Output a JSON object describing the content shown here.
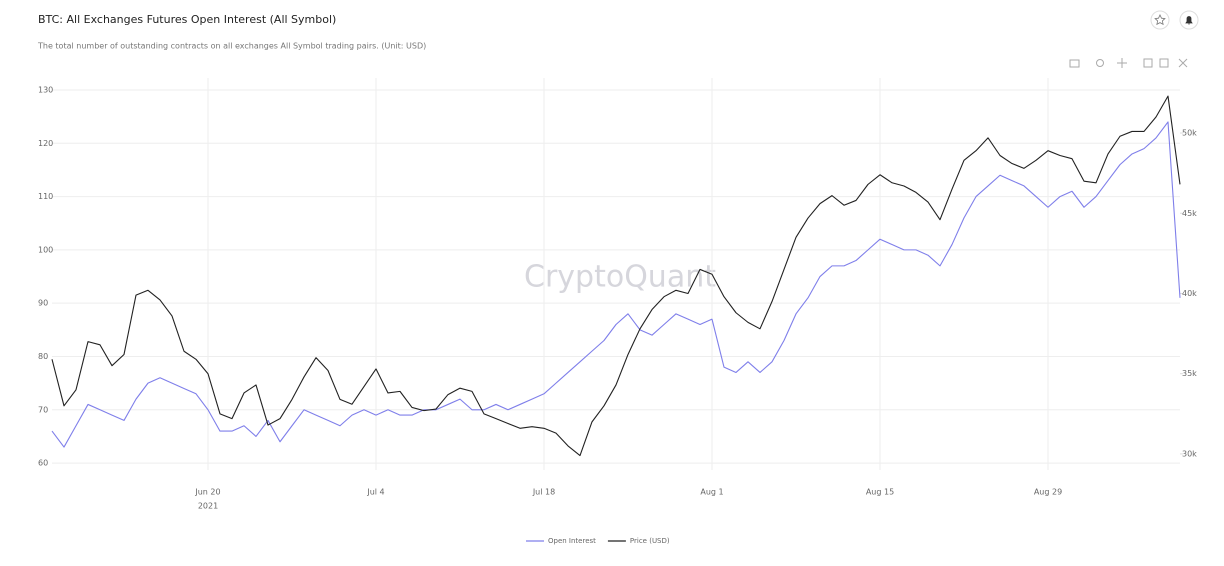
{
  "chart_data": {
    "type": "line",
    "title": "BTC: All Exchanges Futures Open Interest (All Symbol)",
    "subtitle": "The total number of outstanding contracts on all exchanges All Symbol trading pairs. (Unit: USD)",
    "watermark": "CryptoQuant",
    "x_year": "2021",
    "x": [
      "2021-06-07",
      "2021-06-08",
      "2021-06-09",
      "2021-06-10",
      "2021-06-11",
      "2021-06-12",
      "2021-06-13",
      "2021-06-14",
      "2021-06-15",
      "2021-06-16",
      "2021-06-17",
      "2021-06-18",
      "2021-06-19",
      "2021-06-20",
      "2021-06-21",
      "2021-06-22",
      "2021-06-23",
      "2021-06-24",
      "2021-06-25",
      "2021-06-26",
      "2021-06-27",
      "2021-06-28",
      "2021-06-29",
      "2021-06-30",
      "2021-07-01",
      "2021-07-02",
      "2021-07-03",
      "2021-07-04",
      "2021-07-05",
      "2021-07-06",
      "2021-07-07",
      "2021-07-08",
      "2021-07-09",
      "2021-07-10",
      "2021-07-11",
      "2021-07-12",
      "2021-07-13",
      "2021-07-14",
      "2021-07-15",
      "2021-07-16",
      "2021-07-17",
      "2021-07-18",
      "2021-07-19",
      "2021-07-20",
      "2021-07-21",
      "2021-07-22",
      "2021-07-23",
      "2021-07-24",
      "2021-07-25",
      "2021-07-26",
      "2021-07-27",
      "2021-07-28",
      "2021-07-29",
      "2021-07-30",
      "2021-07-31",
      "2021-08-01",
      "2021-08-02",
      "2021-08-03",
      "2021-08-04",
      "2021-08-05",
      "2021-08-06",
      "2021-08-07",
      "2021-08-08",
      "2021-08-09",
      "2021-08-10",
      "2021-08-11",
      "2021-08-12",
      "2021-08-13",
      "2021-08-14",
      "2021-08-15",
      "2021-08-16",
      "2021-08-17",
      "2021-08-18",
      "2021-08-19",
      "2021-08-20",
      "2021-08-21",
      "2021-08-22",
      "2021-08-23",
      "2021-08-24",
      "2021-08-25",
      "2021-08-26",
      "2021-08-27",
      "2021-08-28",
      "2021-08-29",
      "2021-08-30",
      "2021-08-31",
      "2021-09-01",
      "2021-09-02",
      "2021-09-03",
      "2021-09-04",
      "2021-09-05",
      "2021-09-06",
      "2021-09-07",
      "2021-09-08",
      "2021-09-09"
    ],
    "series": [
      {
        "name": "Open Interest",
        "color": "#7f7fea",
        "axis": "y",
        "values": [
          66,
          63,
          67,
          71,
          70,
          69,
          68,
          72,
          75,
          76,
          75,
          74,
          73,
          70,
          66,
          66,
          67,
          65,
          68,
          64,
          67,
          70,
          69,
          68,
          67,
          69,
          70,
          69,
          70,
          69,
          69,
          70,
          70,
          71,
          72,
          70,
          70,
          71,
          70,
          71,
          72,
          73,
          75,
          77,
          79,
          81,
          83,
          86,
          88,
          85,
          84,
          86,
          88,
          87,
          86,
          87,
          78,
          77,
          79,
          77,
          79,
          83,
          88,
          91,
          95,
          97,
          97,
          98,
          100,
          102,
          101,
          100,
          100,
          99,
          97,
          101,
          106,
          110,
          112,
          114,
          113,
          112,
          110,
          108,
          110,
          111,
          108,
          110,
          113,
          116,
          118,
          119,
          121,
          124,
          91
        ]
      },
      {
        "name": "Price (USD)",
        "color": "#222222",
        "axis": "y2",
        "values": [
          35900,
          33000,
          34000,
          37000,
          36800,
          35500,
          36200,
          39900,
          40200,
          39600,
          38600,
          36400,
          35900,
          35000,
          32500,
          32200,
          33800,
          34300,
          31800,
          32200,
          33400,
          34800,
          36000,
          35200,
          33400,
          33100,
          34200,
          35300,
          33800,
          33900,
          32900,
          32700,
          32800,
          33700,
          34100,
          33900,
          32500,
          32200,
          31900,
          31600,
          31700,
          31600,
          31300,
          30500,
          29900,
          32000,
          33000,
          34300,
          36200,
          37800,
          39000,
          39800,
          40200,
          40000,
          41500,
          41200,
          39800,
          38800,
          38200,
          37800,
          39500,
          41500,
          43500,
          44700,
          45600,
          46100,
          45500,
          45800,
          46800,
          47400,
          46900,
          46700,
          46300,
          45700,
          44600,
          46500,
          48300,
          48900,
          49700,
          48600,
          48100,
          47800,
          48300,
          48900,
          48600,
          48400,
          47000,
          46900,
          48700,
          49800,
          50100,
          50100,
          51000,
          52300,
          46800
        ]
      }
    ],
    "xlim": [
      "2021-06-07",
      "2021-09-09"
    ],
    "xticks": [
      {
        "value": "2021-06-20",
        "label": "Jun 20"
      },
      {
        "value": "2021-07-04",
        "label": "Jul 4"
      },
      {
        "value": "2021-07-18",
        "label": "Jul 18"
      },
      {
        "value": "2021-08-01",
        "label": "Aug 1"
      },
      {
        "value": "2021-08-15",
        "label": "Aug 15"
      },
      {
        "value": "2021-08-29",
        "label": "Aug 29"
      }
    ],
    "ylim": [
      58.7,
      132.25
    ],
    "yticks": [
      60,
      70,
      80,
      90,
      100,
      110,
      120,
      130
    ],
    "y2lim": [
      29000,
      53430
    ],
    "y2ticks": [
      {
        "value": 30000,
        "label": "30k"
      },
      {
        "value": 35000,
        "label": "35k"
      },
      {
        "value": 40000,
        "label": "40k"
      },
      {
        "value": 45000,
        "label": "45k"
      },
      {
        "value": 50000,
        "label": "50k"
      }
    ],
    "grid": true,
    "legend": "bottom"
  }
}
